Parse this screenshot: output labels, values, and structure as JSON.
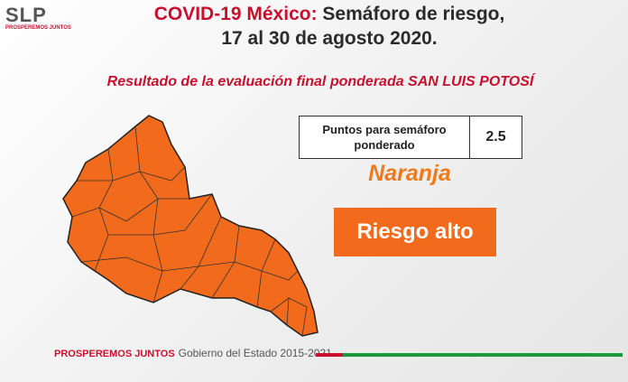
{
  "header": {
    "logo": "SLP",
    "logo_slogan": "PROSPEREMOS JUNTOS",
    "title_highlight": "COVID-19 México:",
    "title_rest": "Semáforo de riesgo,",
    "date": "17 al 30 de agosto 2020.",
    "subtitle": "Resultado de la evaluación final ponderada SAN LUIS POTOSÍ"
  },
  "table": {
    "label": "Puntos para semáforo ponderado",
    "value": 2.5
  },
  "result": {
    "color": "Naranja",
    "risk": "Riesgo alto"
  },
  "footer": {
    "slogan": "PROSPEREMOS JUNTOS",
    "government": "Gobierno del Estado 2015-2021"
  }
}
